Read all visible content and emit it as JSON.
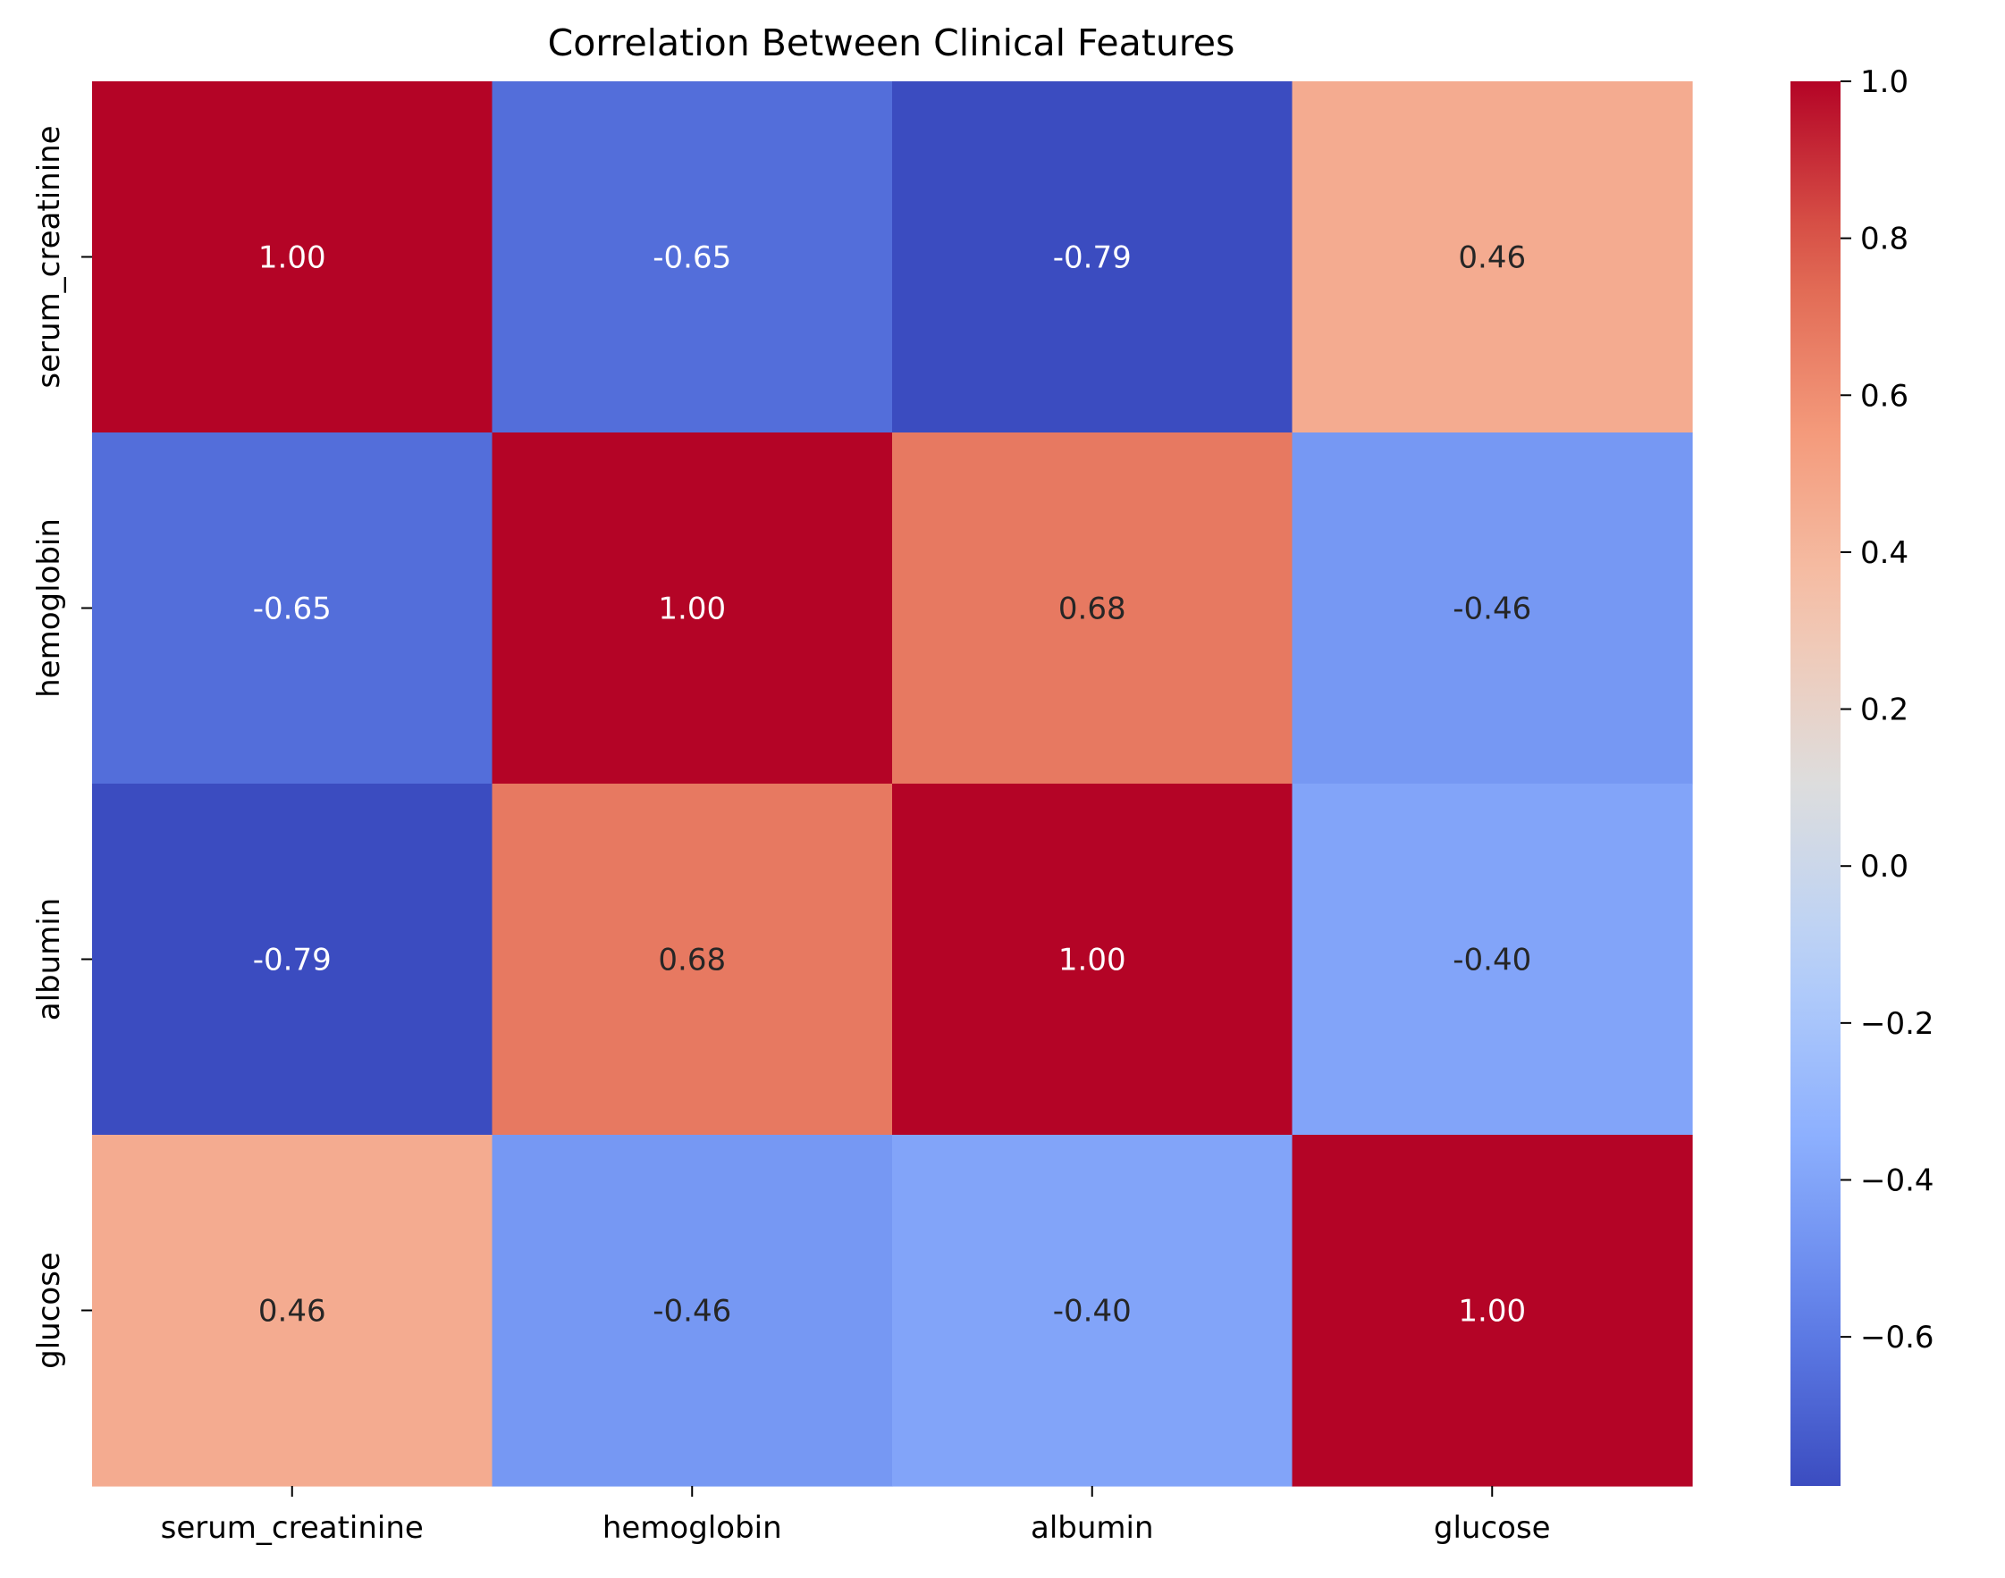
{
  "chart_data": {
    "type": "heatmap",
    "title": "Correlation Between Clinical Features",
    "xlabel": "",
    "ylabel": "",
    "x_categories": [
      "serum_creatinine",
      "hemoglobin",
      "albumin",
      "glucose"
    ],
    "y_categories": [
      "serum_creatinine",
      "hemoglobin",
      "albumin",
      "glucose"
    ],
    "values": [
      [
        1.0,
        -0.65,
        -0.79,
        0.46
      ],
      [
        -0.65,
        1.0,
        0.68,
        -0.46
      ],
      [
        -0.79,
        0.68,
        1.0,
        -0.4
      ],
      [
        0.46,
        -0.46,
        -0.4,
        1.0
      ]
    ],
    "cell_labels": [
      [
        "1.00",
        "-0.65",
        "-0.79",
        "0.46"
      ],
      [
        "-0.65",
        "1.00",
        "0.68",
        "-0.46"
      ],
      [
        "-0.79",
        "0.68",
        "1.00",
        "-0.40"
      ],
      [
        "0.46",
        "-0.46",
        "-0.40",
        "1.00"
      ]
    ],
    "colormap": "coolwarm",
    "colorbar": {
      "vmin": -0.79,
      "vmax": 1.0,
      "ticks": [
        1.0,
        0.8,
        0.6,
        0.4,
        0.2,
        0.0,
        -0.2,
        -0.4,
        -0.6
      ],
      "tick_labels": [
        "1.0",
        "0.8",
        "0.6",
        "0.4",
        "0.2",
        "0.0",
        "−0.2",
        "−0.4",
        "−0.6"
      ]
    },
    "grid": false,
    "legend": "colorbar-right"
  }
}
